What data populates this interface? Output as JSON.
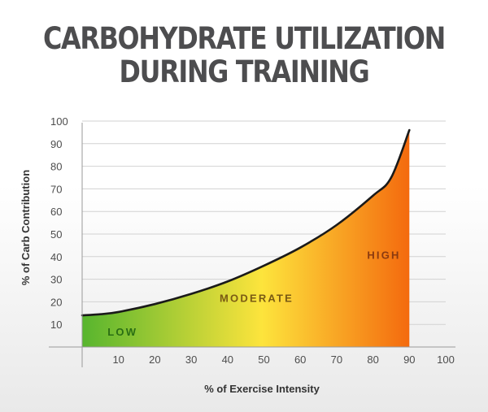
{
  "title": {
    "line1": "CARBOHYDRATE UTILIZATION",
    "line2": "DURING TRAINING"
  },
  "chart_data": {
    "type": "area",
    "title": "CARBOHYDRATE UTILIZATION DURING TRAINING",
    "xlabel": "% of Exercise Intensity",
    "ylabel": "% of Carb Contribution",
    "xlim": [
      0,
      100
    ],
    "ylim": [
      0,
      100
    ],
    "x_ticks": [
      "10",
      "20",
      "30",
      "40",
      "50",
      "60",
      "70",
      "80",
      "90",
      "100"
    ],
    "y_ticks": [
      "10",
      "20",
      "30",
      "40",
      "50",
      "60",
      "70",
      "80",
      "90",
      "100"
    ],
    "grid": true,
    "series": [
      {
        "x": [
          0,
          5,
          10,
          20,
          30,
          40,
          50,
          60,
          70,
          80,
          85,
          90
        ],
        "y": [
          14,
          14.5,
          15.5,
          19,
          23.5,
          29,
          36,
          44,
          54,
          67,
          75,
          96
        ]
      }
    ],
    "zones": [
      {
        "label": "LOW",
        "x": 7,
        "y": 5,
        "color": "#2a6e14"
      },
      {
        "label": "MODERATE",
        "x": 48,
        "y": 20,
        "color": "#7a5b14"
      },
      {
        "label": "HIGH",
        "x": 83,
        "y": 39,
        "color": "#8a3a10"
      }
    ],
    "fill_gradient": [
      "#57b52e",
      "#fde43c",
      "#f46a0e"
    ]
  }
}
